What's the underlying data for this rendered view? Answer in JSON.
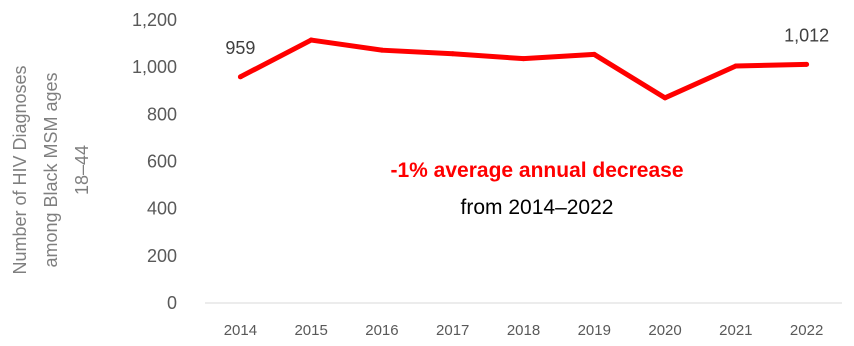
{
  "chart_data": {
    "type": "line",
    "x": [
      "2014",
      "2015",
      "2016",
      "2017",
      "2018",
      "2019",
      "2020",
      "2021",
      "2022"
    ],
    "series": [
      {
        "values": [
          959,
          1115,
          1072,
          1057,
          1036,
          1054,
          870,
          1005,
          1012
        ]
      }
    ],
    "data_labels": [
      {
        "index": 0,
        "text": "959"
      },
      {
        "index": 8,
        "text": "1,012"
      }
    ],
    "ylabel_lines": [
      "Number of HIV Diagnoses",
      "among Black MSM ages",
      "18–44"
    ],
    "ylim": [
      0,
      1200
    ],
    "yticks": [
      {
        "v": 0,
        "label": "0"
      },
      {
        "v": 200,
        "label": "200"
      },
      {
        "v": 400,
        "label": "400"
      },
      {
        "v": 600,
        "label": "600"
      },
      {
        "v": 800,
        "label": "800"
      },
      {
        "v": 1000,
        "label": "1,000"
      },
      {
        "v": 1200,
        "label": "1,200"
      }
    ],
    "annotation": {
      "main": "-1% average annual decrease",
      "sub": "from 2014–2022"
    },
    "grid": false,
    "legend": "none",
    "colors": {
      "line": "#ff0000",
      "annotation": "#ff0000",
      "axis": "#d9d9d9"
    }
  }
}
